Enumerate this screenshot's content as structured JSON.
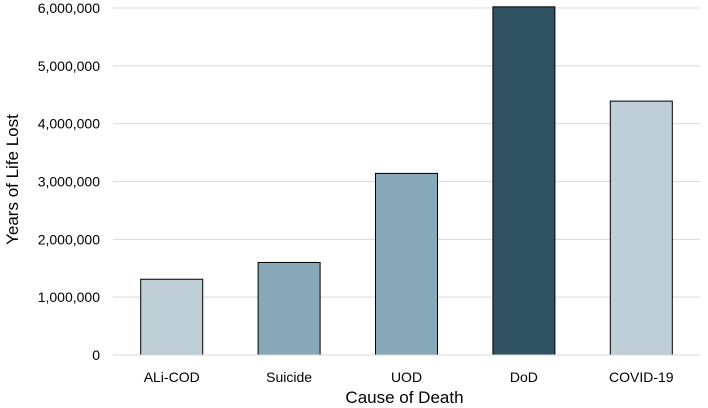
{
  "chart_data": {
    "type": "bar",
    "title": "",
    "xlabel": "Cause of Death",
    "ylabel": "Years of Life Lost",
    "ylim": [
      0,
      6000000
    ],
    "yticks": [
      0,
      1000000,
      2000000,
      3000000,
      4000000,
      5000000,
      6000000
    ],
    "ytick_labels": [
      "0",
      "1,000,000",
      "2,000,000",
      "3,000,000",
      "4,000,000",
      "5,000,000",
      "6,000,000"
    ],
    "categories": [
      "ALi-COD",
      "Suicide",
      "UOD",
      "DoD",
      "COVID-19"
    ],
    "values": [
      1310000,
      1600000,
      3140000,
      6020000,
      4390000
    ],
    "colors": [
      "#BFCFD8",
      "#87A9B7",
      "#87A9B7",
      "#2F5362",
      "#BFCFD8"
    ],
    "grid": true,
    "legend": "none"
  }
}
